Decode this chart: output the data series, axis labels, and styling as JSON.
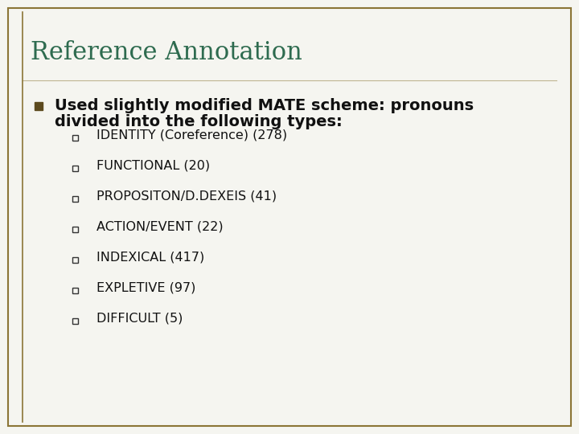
{
  "title": "Reference Annotation",
  "title_color": "#2E6B4F",
  "title_fontsize": 22,
  "background_color": "#F5F5F0",
  "border_color": "#8B7536",
  "bullet_main_color": "#5C4A1E",
  "main_bullet_text_line1": "Used slightly modified MATE scheme: pronouns",
  "main_bullet_text_line2": "divided into the following types:",
  "main_text_fontsize": 14,
  "sub_items": [
    "IDENTITY (Coreference) (278)",
    "FUNCTIONAL (20)",
    "PROPOSITON/D.DEXEIS (41)",
    "ACTION/EVENT (22)",
    "INDEXICAL (417)",
    "EXPLETIVE (97)",
    "DIFFICULT (5)"
  ],
  "sub_text_fontsize": 11.5
}
